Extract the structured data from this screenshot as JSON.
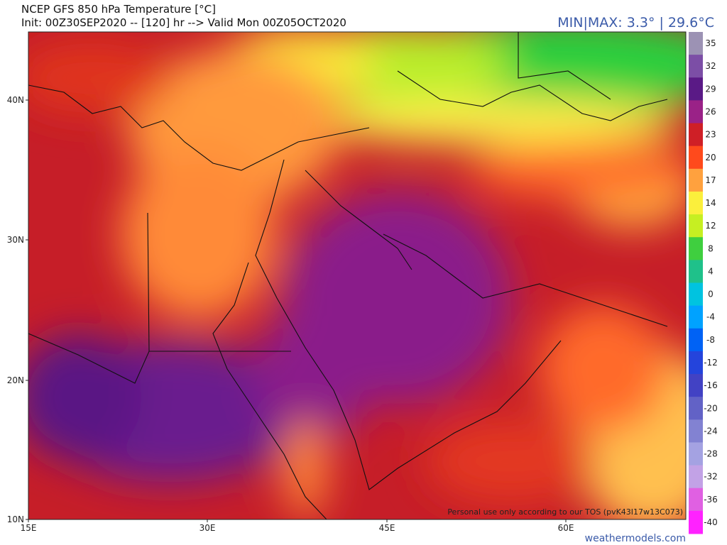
{
  "header": {
    "title": "NCEP GFS 850 hPa Temperature [°C]",
    "subtitle": "Init: 00Z30SEP2020 -- [120] hr --> Valid Mon 00Z05OCT2020",
    "minmax": "MIN|MAX: 3.3° | 29.6°C"
  },
  "map": {
    "lat_labels": [
      "40N",
      "30N",
      "20N",
      "10N"
    ],
    "lon_labels": [
      "15E",
      "30E",
      "45E",
      "60E"
    ],
    "notice": "Personal use only according to our TOS (pvK43I17w13C073)"
  },
  "colorbar": {
    "ticks": [
      35,
      32,
      29,
      26,
      23,
      20,
      17,
      14,
      12,
      8,
      4,
      0,
      -4,
      -8,
      -12,
      -16,
      -20,
      -24,
      -28,
      -32,
      -36,
      -40
    ],
    "colors": [
      "#9c92b4",
      "#7c4ea6",
      "#5a1a86",
      "#9a2287",
      "#cf1f26",
      "#ff4a1c",
      "#ffa13e",
      "#fbef3c",
      "#c6ef22",
      "#3fcf3f",
      "#1fc18a",
      "#00c3e0",
      "#00a2ff",
      "#0062f5",
      "#2444dc",
      "#4242c4",
      "#6262c6",
      "#8282d2",
      "#a4a2e2",
      "#c2a2e6",
      "#e060e2",
      "#ff22ff"
    ]
  },
  "footer": {
    "site": "weathermodels.com"
  }
}
